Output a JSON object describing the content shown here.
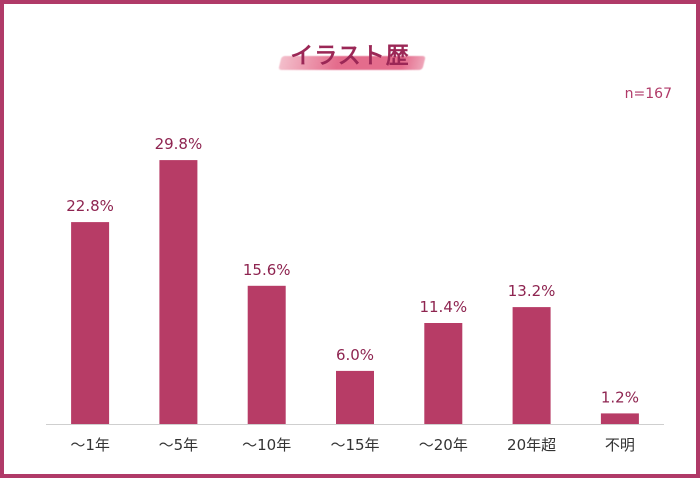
{
  "chart_data": {
    "type": "bar",
    "title": "イラスト歴",
    "note": "n=167",
    "categories": [
      "～1年",
      "～5年",
      "～10年",
      "～15年",
      "～20年",
      "20年超",
      "不明"
    ],
    "values": [
      22.8,
      29.8,
      15.6,
      6.0,
      11.4,
      13.2,
      1.2
    ],
    "value_labels": [
      "22.8%",
      "29.8%",
      "15.6%",
      "6.0%",
      "11.4%",
      "13.2%",
      "1.2%"
    ],
    "unit": "%",
    "ylim": [
      0,
      35
    ],
    "grid": false,
    "legend": "none",
    "colors": {
      "bar": "#b73c66",
      "border": "#b03a68",
      "title": "#9b2756",
      "highlight": "#e46c8c"
    }
  }
}
